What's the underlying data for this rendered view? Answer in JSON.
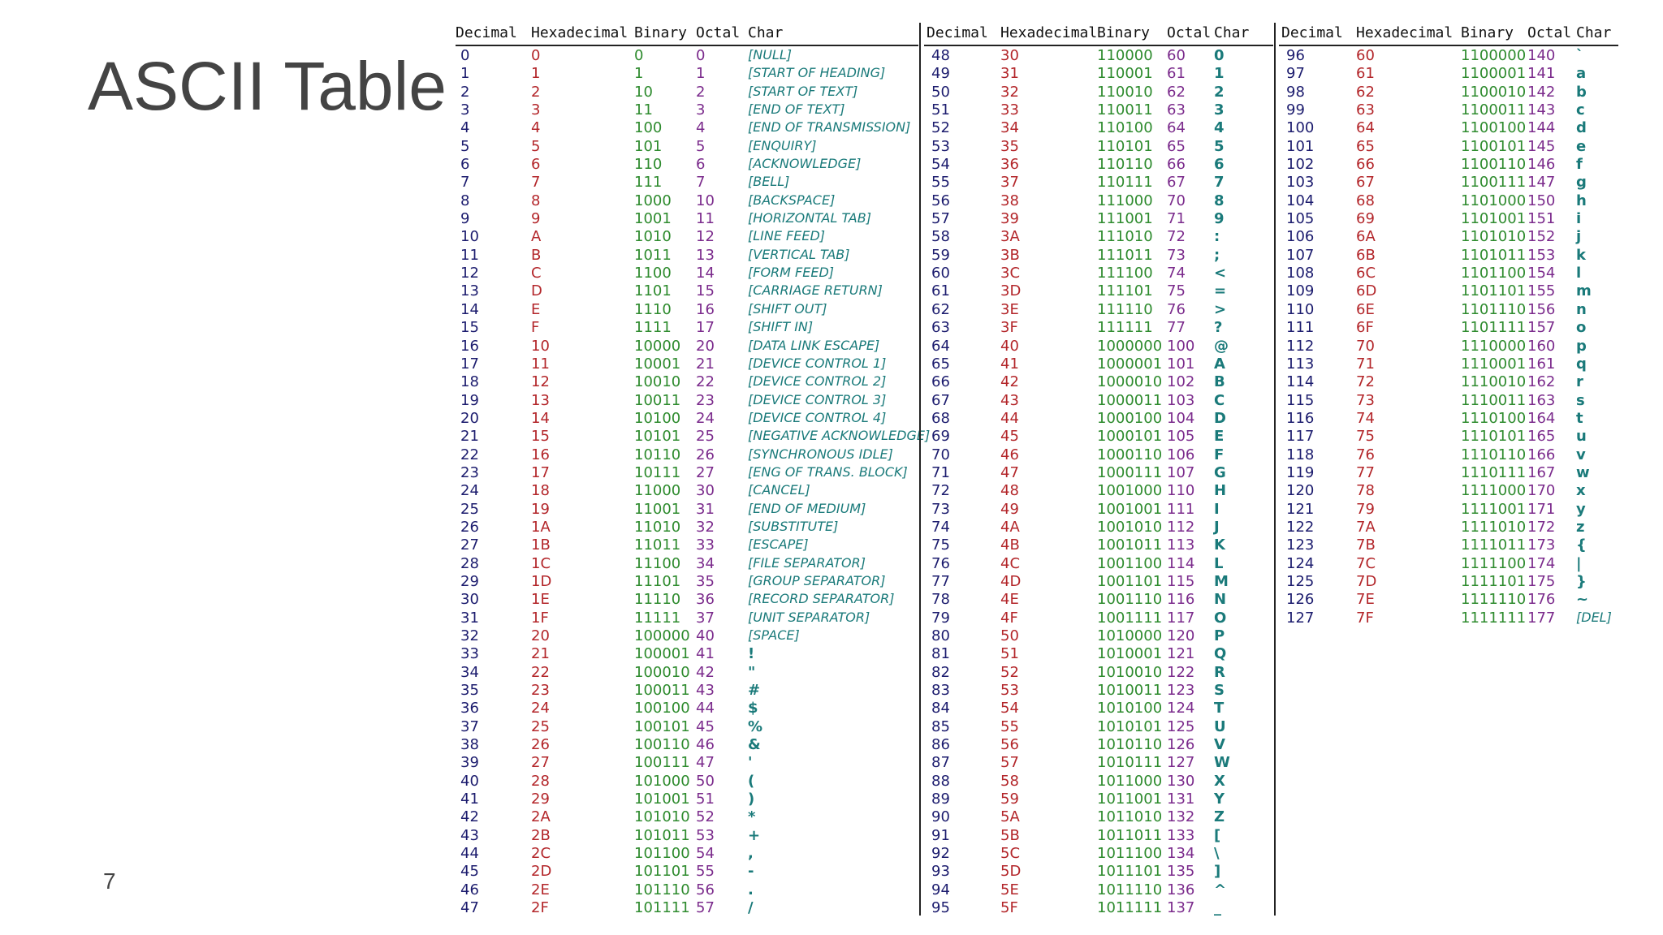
{
  "slide": {
    "title": "ASCII Table",
    "number": "7"
  },
  "table": {
    "headers": [
      "Decimal",
      "Hexadecimal",
      "Binary",
      "Octal",
      "Char"
    ],
    "columns": [
      [
        [
          "0",
          "0",
          "0",
          "0",
          "[NULL]"
        ],
        [
          "1",
          "1",
          "1",
          "1",
          "[START OF HEADING]"
        ],
        [
          "2",
          "2",
          "10",
          "2",
          "[START OF TEXT]"
        ],
        [
          "3",
          "3",
          "11",
          "3",
          "[END OF TEXT]"
        ],
        [
          "4",
          "4",
          "100",
          "4",
          "[END OF TRANSMISSION]"
        ],
        [
          "5",
          "5",
          "101",
          "5",
          "[ENQUIRY]"
        ],
        [
          "6",
          "6",
          "110",
          "6",
          "[ACKNOWLEDGE]"
        ],
        [
          "7",
          "7",
          "111",
          "7",
          "[BELL]"
        ],
        [
          "8",
          "8",
          "1000",
          "10",
          "[BACKSPACE]"
        ],
        [
          "9",
          "9",
          "1001",
          "11",
          "[HORIZONTAL TAB]"
        ],
        [
          "10",
          "A",
          "1010",
          "12",
          "[LINE FEED]"
        ],
        [
          "11",
          "B",
          "1011",
          "13",
          "[VERTICAL TAB]"
        ],
        [
          "12",
          "C",
          "1100",
          "14",
          "[FORM FEED]"
        ],
        [
          "13",
          "D",
          "1101",
          "15",
          "[CARRIAGE RETURN]"
        ],
        [
          "14",
          "E",
          "1110",
          "16",
          "[SHIFT OUT]"
        ],
        [
          "15",
          "F",
          "1111",
          "17",
          "[SHIFT IN]"
        ],
        [
          "16",
          "10",
          "10000",
          "20",
          "[DATA LINK ESCAPE]"
        ],
        [
          "17",
          "11",
          "10001",
          "21",
          "[DEVICE CONTROL 1]"
        ],
        [
          "18",
          "12",
          "10010",
          "22",
          "[DEVICE CONTROL 2]"
        ],
        [
          "19",
          "13",
          "10011",
          "23",
          "[DEVICE CONTROL 3]"
        ],
        [
          "20",
          "14",
          "10100",
          "24",
          "[DEVICE CONTROL 4]"
        ],
        [
          "21",
          "15",
          "10101",
          "25",
          "[NEGATIVE ACKNOWLEDGE]"
        ],
        [
          "22",
          "16",
          "10110",
          "26",
          "[SYNCHRONOUS IDLE]"
        ],
        [
          "23",
          "17",
          "10111",
          "27",
          "[ENG OF TRANS. BLOCK]"
        ],
        [
          "24",
          "18",
          "11000",
          "30",
          "[CANCEL]"
        ],
        [
          "25",
          "19",
          "11001",
          "31",
          "[END OF MEDIUM]"
        ],
        [
          "26",
          "1A",
          "11010",
          "32",
          "[SUBSTITUTE]"
        ],
        [
          "27",
          "1B",
          "11011",
          "33",
          "[ESCAPE]"
        ],
        [
          "28",
          "1C",
          "11100",
          "34",
          "[FILE SEPARATOR]"
        ],
        [
          "29",
          "1D",
          "11101",
          "35",
          "[GROUP SEPARATOR]"
        ],
        [
          "30",
          "1E",
          "11110",
          "36",
          "[RECORD SEPARATOR]"
        ],
        [
          "31",
          "1F",
          "11111",
          "37",
          "[UNIT SEPARATOR]"
        ],
        [
          "32",
          "20",
          "100000",
          "40",
          "[SPACE]"
        ],
        [
          "33",
          "21",
          "100001",
          "41",
          "!"
        ],
        [
          "34",
          "22",
          "100010",
          "42",
          "\""
        ],
        [
          "35",
          "23",
          "100011",
          "43",
          "#"
        ],
        [
          "36",
          "24",
          "100100",
          "44",
          "$"
        ],
        [
          "37",
          "25",
          "100101",
          "45",
          "%"
        ],
        [
          "38",
          "26",
          "100110",
          "46",
          "&"
        ],
        [
          "39",
          "27",
          "100111",
          "47",
          "'"
        ],
        [
          "40",
          "28",
          "101000",
          "50",
          "("
        ],
        [
          "41",
          "29",
          "101001",
          "51",
          ")"
        ],
        [
          "42",
          "2A",
          "101010",
          "52",
          "*"
        ],
        [
          "43",
          "2B",
          "101011",
          "53",
          "+"
        ],
        [
          "44",
          "2C",
          "101100",
          "54",
          ","
        ],
        [
          "45",
          "2D",
          "101101",
          "55",
          "-"
        ],
        [
          "46",
          "2E",
          "101110",
          "56",
          "."
        ],
        [
          "47",
          "2F",
          "101111",
          "57",
          "/"
        ]
      ],
      [
        [
          "48",
          "30",
          "110000",
          "60",
          "0"
        ],
        [
          "49",
          "31",
          "110001",
          "61",
          "1"
        ],
        [
          "50",
          "32",
          "110010",
          "62",
          "2"
        ],
        [
          "51",
          "33",
          "110011",
          "63",
          "3"
        ],
        [
          "52",
          "34",
          "110100",
          "64",
          "4"
        ],
        [
          "53",
          "35",
          "110101",
          "65",
          "5"
        ],
        [
          "54",
          "36",
          "110110",
          "66",
          "6"
        ],
        [
          "55",
          "37",
          "110111",
          "67",
          "7"
        ],
        [
          "56",
          "38",
          "111000",
          "70",
          "8"
        ],
        [
          "57",
          "39",
          "111001",
          "71",
          "9"
        ],
        [
          "58",
          "3A",
          "111010",
          "72",
          ":"
        ],
        [
          "59",
          "3B",
          "111011",
          "73",
          ";"
        ],
        [
          "60",
          "3C",
          "111100",
          "74",
          "<"
        ],
        [
          "61",
          "3D",
          "111101",
          "75",
          "="
        ],
        [
          "62",
          "3E",
          "111110",
          "76",
          ">"
        ],
        [
          "63",
          "3F",
          "111111",
          "77",
          "?"
        ],
        [
          "64",
          "40",
          "1000000",
          "100",
          "@"
        ],
        [
          "65",
          "41",
          "1000001",
          "101",
          "A"
        ],
        [
          "66",
          "42",
          "1000010",
          "102",
          "B"
        ],
        [
          "67",
          "43",
          "1000011",
          "103",
          "C"
        ],
        [
          "68",
          "44",
          "1000100",
          "104",
          "D"
        ],
        [
          "69",
          "45",
          "1000101",
          "105",
          "E"
        ],
        [
          "70",
          "46",
          "1000110",
          "106",
          "F"
        ],
        [
          "71",
          "47",
          "1000111",
          "107",
          "G"
        ],
        [
          "72",
          "48",
          "1001000",
          "110",
          "H"
        ],
        [
          "73",
          "49",
          "1001001",
          "111",
          "I"
        ],
        [
          "74",
          "4A",
          "1001010",
          "112",
          "J"
        ],
        [
          "75",
          "4B",
          "1001011",
          "113",
          "K"
        ],
        [
          "76",
          "4C",
          "1001100",
          "114",
          "L"
        ],
        [
          "77",
          "4D",
          "1001101",
          "115",
          "M"
        ],
        [
          "78",
          "4E",
          "1001110",
          "116",
          "N"
        ],
        [
          "79",
          "4F",
          "1001111",
          "117",
          "O"
        ],
        [
          "80",
          "50",
          "1010000",
          "120",
          "P"
        ],
        [
          "81",
          "51",
          "1010001",
          "121",
          "Q"
        ],
        [
          "82",
          "52",
          "1010010",
          "122",
          "R"
        ],
        [
          "83",
          "53",
          "1010011",
          "123",
          "S"
        ],
        [
          "84",
          "54",
          "1010100",
          "124",
          "T"
        ],
        [
          "85",
          "55",
          "1010101",
          "125",
          "U"
        ],
        [
          "86",
          "56",
          "1010110",
          "126",
          "V"
        ],
        [
          "87",
          "57",
          "1010111",
          "127",
          "W"
        ],
        [
          "88",
          "58",
          "1011000",
          "130",
          "X"
        ],
        [
          "89",
          "59",
          "1011001",
          "131",
          "Y"
        ],
        [
          "90",
          "5A",
          "1011010",
          "132",
          "Z"
        ],
        [
          "91",
          "5B",
          "1011011",
          "133",
          "["
        ],
        [
          "92",
          "5C",
          "1011100",
          "134",
          "\\"
        ],
        [
          "93",
          "5D",
          "1011101",
          "135",
          "]"
        ],
        [
          "94",
          "5E",
          "1011110",
          "136",
          "^"
        ],
        [
          "95",
          "5F",
          "1011111",
          "137",
          "_"
        ]
      ],
      [
        [
          "96",
          "60",
          "1100000",
          "140",
          "`"
        ],
        [
          "97",
          "61",
          "1100001",
          "141",
          "a"
        ],
        [
          "98",
          "62",
          "1100010",
          "142",
          "b"
        ],
        [
          "99",
          "63",
          "1100011",
          "143",
          "c"
        ],
        [
          "100",
          "64",
          "1100100",
          "144",
          "d"
        ],
        [
          "101",
          "65",
          "1100101",
          "145",
          "e"
        ],
        [
          "102",
          "66",
          "1100110",
          "146",
          "f"
        ],
        [
          "103",
          "67",
          "1100111",
          "147",
          "g"
        ],
        [
          "104",
          "68",
          "1101000",
          "150",
          "h"
        ],
        [
          "105",
          "69",
          "1101001",
          "151",
          "i"
        ],
        [
          "106",
          "6A",
          "1101010",
          "152",
          "j"
        ],
        [
          "107",
          "6B",
          "1101011",
          "153",
          "k"
        ],
        [
          "108",
          "6C",
          "1101100",
          "154",
          "l"
        ],
        [
          "109",
          "6D",
          "1101101",
          "155",
          "m"
        ],
        [
          "110",
          "6E",
          "1101110",
          "156",
          "n"
        ],
        [
          "111",
          "6F",
          "1101111",
          "157",
          "o"
        ],
        [
          "112",
          "70",
          "1110000",
          "160",
          "p"
        ],
        [
          "113",
          "71",
          "1110001",
          "161",
          "q"
        ],
        [
          "114",
          "72",
          "1110010",
          "162",
          "r"
        ],
        [
          "115",
          "73",
          "1110011",
          "163",
          "s"
        ],
        [
          "116",
          "74",
          "1110100",
          "164",
          "t"
        ],
        [
          "117",
          "75",
          "1110101",
          "165",
          "u"
        ],
        [
          "118",
          "76",
          "1110110",
          "166",
          "v"
        ],
        [
          "119",
          "77",
          "1110111",
          "167",
          "w"
        ],
        [
          "120",
          "78",
          "1111000",
          "170",
          "x"
        ],
        [
          "121",
          "79",
          "1111001",
          "171",
          "y"
        ],
        [
          "122",
          "7A",
          "1111010",
          "172",
          "z"
        ],
        [
          "123",
          "7B",
          "1111011",
          "173",
          "{"
        ],
        [
          "124",
          "7C",
          "1111100",
          "174",
          "|"
        ],
        [
          "125",
          "7D",
          "1111101",
          "175",
          "}"
        ],
        [
          "126",
          "7E",
          "1111110",
          "176",
          "~"
        ],
        [
          "127",
          "7F",
          "1111111",
          "177",
          "[DEL]"
        ]
      ]
    ]
  },
  "colors": {
    "decimal": "#1c1c6e",
    "hexadecimal": "#b3262a",
    "binary": "#2e8b2e",
    "octal": "#7b2b8c",
    "char": "#1a7a7a"
  }
}
